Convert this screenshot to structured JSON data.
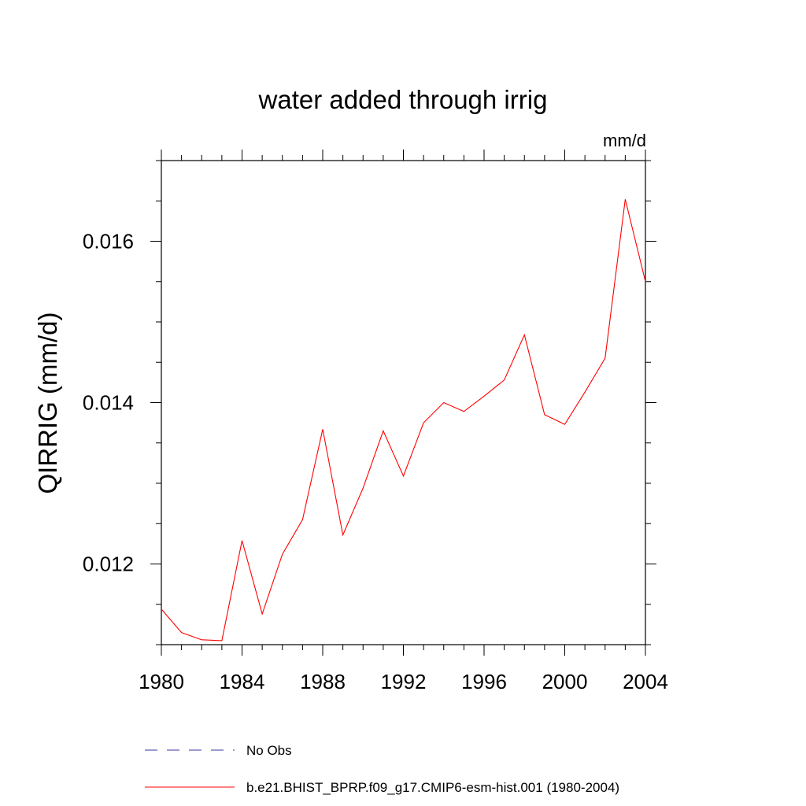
{
  "chart_data": {
    "type": "line",
    "title": "water added through irrig",
    "units": "mm/d",
    "ylabel": "QIRRIG  (mm/d)",
    "xlabel": "",
    "xlim": [
      1980,
      2004
    ],
    "ylim": [
      0.011,
      0.017
    ],
    "x_ticks": [
      1980,
      1984,
      1988,
      1992,
      1996,
      2000,
      2004
    ],
    "x_tick_labels": [
      "1980",
      "1984",
      "1988",
      "1992",
      "1996",
      "2000",
      "2004"
    ],
    "y_ticks": [
      0.012,
      0.014,
      0.016
    ],
    "y_tick_labels": [
      "0.012",
      "0.014",
      "0.016"
    ],
    "x_minor_step": 1,
    "y_minor_step": 0.0005,
    "grid": false,
    "legend_position": "bottom",
    "series": [
      {
        "name": "No Obs",
        "color": "#3a35a0",
        "style": "dashed",
        "x": [],
        "values": []
      },
      {
        "name": "b.e21.BHIST_BPRP.f09_g17.CMIP6-esm-hist.001 (1980-2004)",
        "color": "#ff0000",
        "style": "solid",
        "x": [
          1980,
          1981,
          1982,
          1983,
          1984,
          1985,
          1986,
          1987,
          1988,
          1989,
          1990,
          1991,
          1992,
          1993,
          1994,
          1995,
          1996,
          1997,
          1998,
          1999,
          2000,
          2001,
          2002,
          2003,
          2004
        ],
        "values": [
          0.01144,
          0.01115,
          0.01106,
          0.01105,
          0.01229,
          0.01138,
          0.01212,
          0.01255,
          0.01367,
          0.01236,
          0.01294,
          0.01365,
          0.01309,
          0.01375,
          0.014,
          0.01389,
          0.01408,
          0.01428,
          0.01484,
          0.01385,
          0.01373,
          0.01413,
          0.01455,
          0.01652,
          0.0155
        ]
      }
    ]
  }
}
